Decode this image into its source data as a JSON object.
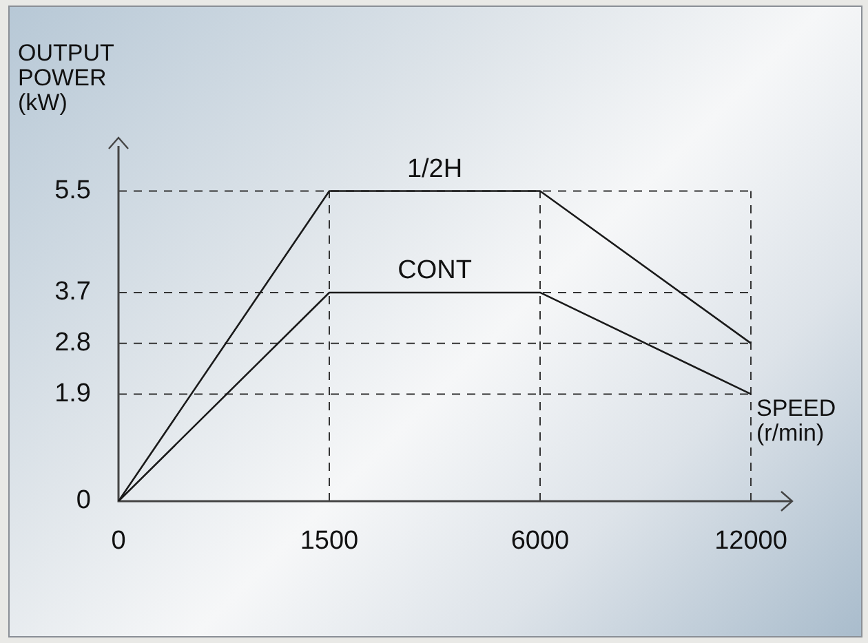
{
  "chart_data": {
    "type": "line",
    "xlabel": "SPEED (r/min)",
    "ylabel": "OUTPUT POWER (kW)",
    "categories": [
      "0",
      "1500",
      "6000",
      "12000"
    ],
    "series": [
      {
        "name": "1/2H",
        "color": "#1a1a1a",
        "values": [
          0,
          5.5,
          5.5,
          2.8
        ]
      },
      {
        "name": "CONT",
        "color": "#1a1a1a",
        "values": [
          0,
          3.7,
          3.7,
          1.9
        ]
      }
    ],
    "ylim": [
      0,
      6.3
    ],
    "yticks": [
      0,
      1.9,
      2.8,
      3.7,
      5.5
    ],
    "grid": true,
    "legend": false,
    "marker": "none",
    "line_style": "solid"
  }
}
